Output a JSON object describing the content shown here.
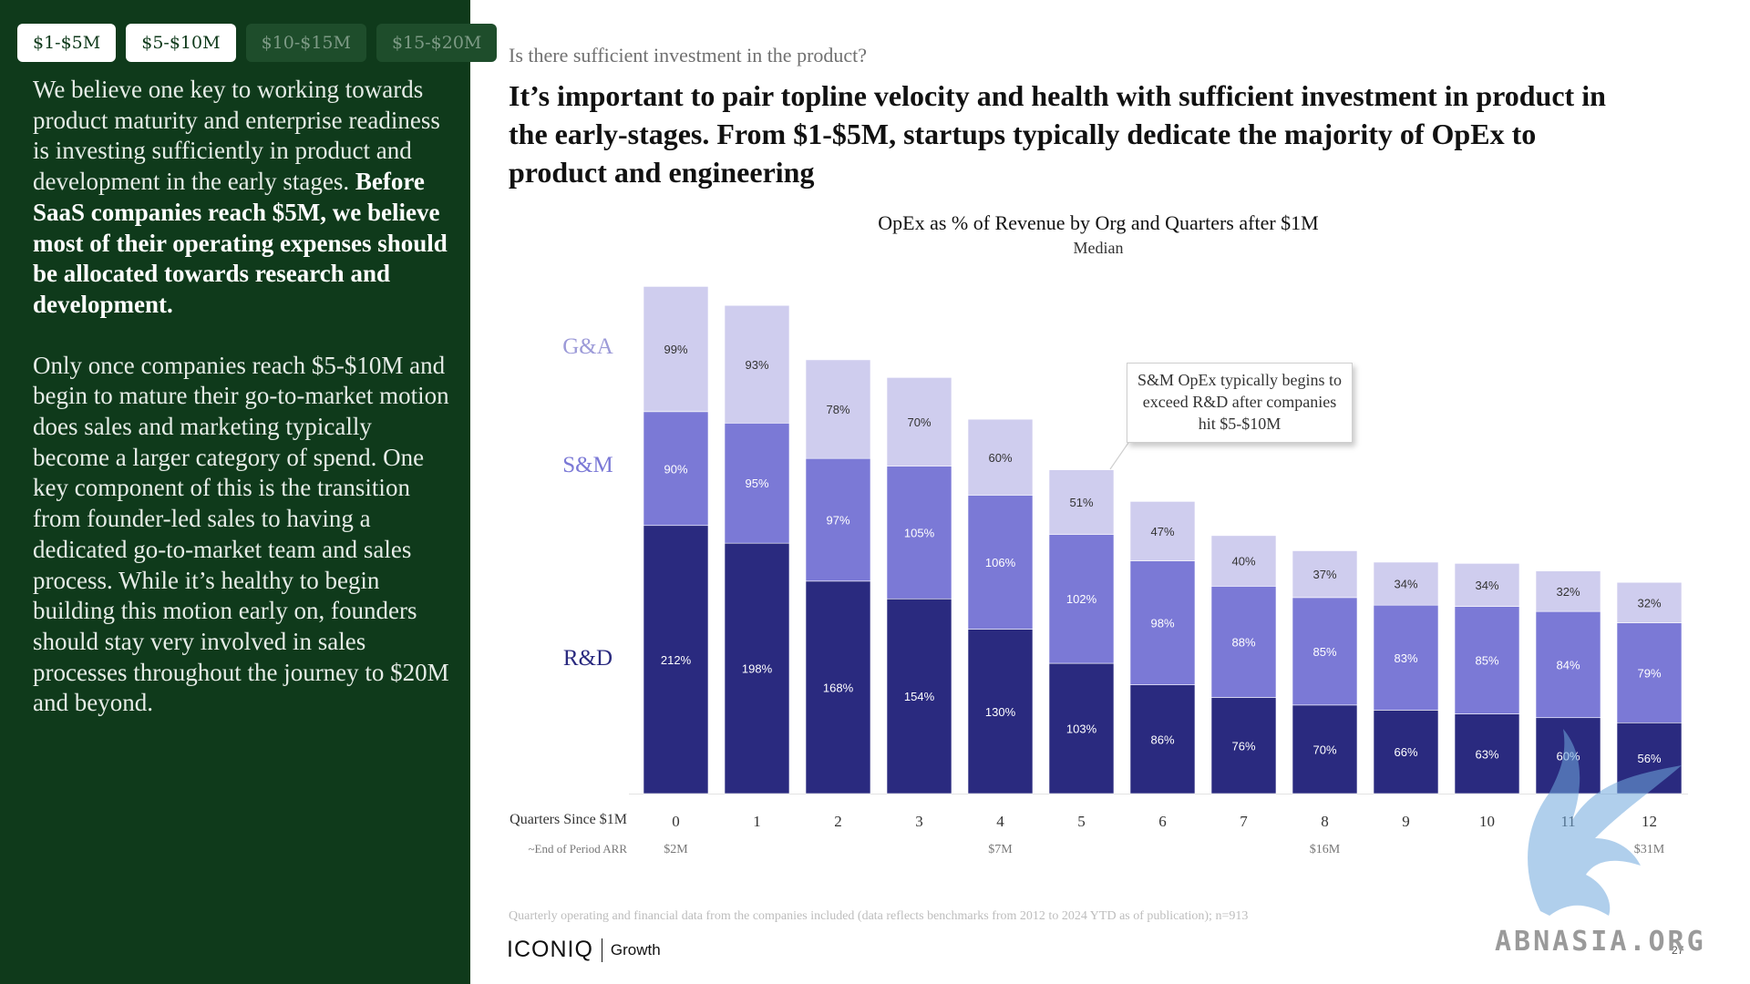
{
  "tabs": [
    {
      "label": "$1-$5M",
      "active": true
    },
    {
      "label": "$5-$10M",
      "active": true
    },
    {
      "label": "$10-$15M",
      "active": false
    },
    {
      "label": "$15-$20M",
      "active": false
    }
  ],
  "sidebar": {
    "p1_plain": "We believe one key to working towards product maturity and enterprise readiness is investing sufficiently in product and development in the early stages.",
    "p1_bold": "Before SaaS companies reach $5M, we believe most of their operating expenses should be allocated towards research and development.",
    "p2": "Only once companies reach $5-$10M and begin to mature their go-to-market motion does sales and marketing typically become a larger category of spend. One key component of this is the transition from founder-led sales to having a dedicated go-to-market team and sales process. While it’s healthy to begin building this motion early on, founders should stay very involved in sales processes throughout the journey to $20M and beyond."
  },
  "header": {
    "question": "Is there sufficient investment in the product?",
    "headline": "It’s important to pair topline velocity and health with sufficient investment in product in the early-stages. From $1-$5M, startups typically dedicate the majority of OpEx to product and engineering"
  },
  "callout": "S&M OpEx typically begins to exceed R&D after companies hit $5-$10M",
  "footnote": "Quarterly operating and financial data from the companies included (data reflects benchmarks from 2012 to 2024 YTD as of publication); n=913",
  "logo": {
    "main": "ICONIQ",
    "sub": "Growth"
  },
  "page_number": "27",
  "watermark": "ABNASIA.ORG",
  "colors": {
    "rd": "#2a2a7f",
    "sm": "#7b79d6",
    "ga": "#cfcdee",
    "sidebar": "#0f3a1b"
  },
  "chart_data": {
    "type": "bar",
    "stacked": true,
    "title": "OpEx as % of Revenue by Org and Quarters after $1M",
    "subtitle": "Median",
    "xlabel": "Quarters Since $1M",
    "secondary_label": "~End of Period ARR",
    "categories": [
      "0",
      "1",
      "2",
      "3",
      "4",
      "5",
      "6",
      "7",
      "8",
      "9",
      "10",
      "11",
      "12"
    ],
    "arr_labels": [
      "$2M",
      "",
      "",
      "",
      "$7M",
      "",
      "",
      "",
      "$16M",
      "",
      "",
      "",
      "$31M"
    ],
    "series": [
      {
        "name": "R&D",
        "values": [
          212,
          198,
          168,
          154,
          130,
          103,
          86,
          76,
          70,
          66,
          63,
          60,
          56
        ]
      },
      {
        "name": "S&M",
        "values": [
          90,
          95,
          97,
          105,
          106,
          102,
          98,
          88,
          85,
          83,
          85,
          84,
          79
        ]
      },
      {
        "name": "G&A",
        "values": [
          99,
          93,
          78,
          70,
          60,
          51,
          47,
          40,
          37,
          34,
          34,
          32,
          32
        ]
      }
    ],
    "value_suffix": "%",
    "legend_placement": "left"
  }
}
